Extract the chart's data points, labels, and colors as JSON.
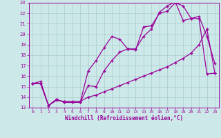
{
  "xlabel": "Windchill (Refroidissement éolien,°C)",
  "background_color": "#cce8e8",
  "grid_color": "#aacccc",
  "line_color": "#990099",
  "xlim": [
    -0.5,
    23.5
  ],
  "ylim": [
    13,
    23
  ],
  "xticks": [
    0,
    1,
    2,
    3,
    4,
    5,
    6,
    7,
    8,
    9,
    10,
    11,
    12,
    13,
    14,
    15,
    16,
    17,
    18,
    19,
    20,
    21,
    22,
    23
  ],
  "yticks": [
    13,
    14,
    15,
    16,
    17,
    18,
    19,
    20,
    21,
    22,
    23
  ],
  "line1_x": [
    0,
    1,
    2,
    3,
    4,
    5,
    6,
    7,
    8,
    9,
    10,
    11,
    12,
    13,
    14,
    15,
    16,
    17,
    18,
    19,
    20,
    21,
    22,
    23
  ],
  "line1_y": [
    15.3,
    15.3,
    13.2,
    13.8,
    13.5,
    13.5,
    13.5,
    16.5,
    17.5,
    18.7,
    19.8,
    19.5,
    18.6,
    18.5,
    20.7,
    20.8,
    22.0,
    22.2,
    23.0,
    22.7,
    21.5,
    21.7,
    19.8,
    17.2
  ],
  "line2_x": [
    0,
    1,
    2,
    3,
    4,
    5,
    6,
    7,
    8,
    9,
    10,
    11,
    12,
    13,
    14,
    15,
    16,
    17,
    18,
    19,
    20,
    21,
    22,
    23
  ],
  "line2_y": [
    15.3,
    15.3,
    13.2,
    13.8,
    13.5,
    13.5,
    13.5,
    15.1,
    15.0,
    16.5,
    17.5,
    18.3,
    18.6,
    18.6,
    19.8,
    20.5,
    22.1,
    22.7,
    23.1,
    21.3,
    21.5,
    21.5,
    16.2,
    16.3
  ],
  "line3_x": [
    0,
    1,
    2,
    3,
    4,
    5,
    6,
    7,
    8,
    9,
    10,
    11,
    12,
    13,
    14,
    15,
    16,
    17,
    18,
    19,
    20,
    21,
    22,
    23
  ],
  "line3_y": [
    15.3,
    15.5,
    13.2,
    13.7,
    13.6,
    13.6,
    13.6,
    14.0,
    14.2,
    14.5,
    14.8,
    15.1,
    15.4,
    15.7,
    16.0,
    16.3,
    16.6,
    16.9,
    17.3,
    17.7,
    18.2,
    19.0,
    20.5,
    16.3
  ]
}
